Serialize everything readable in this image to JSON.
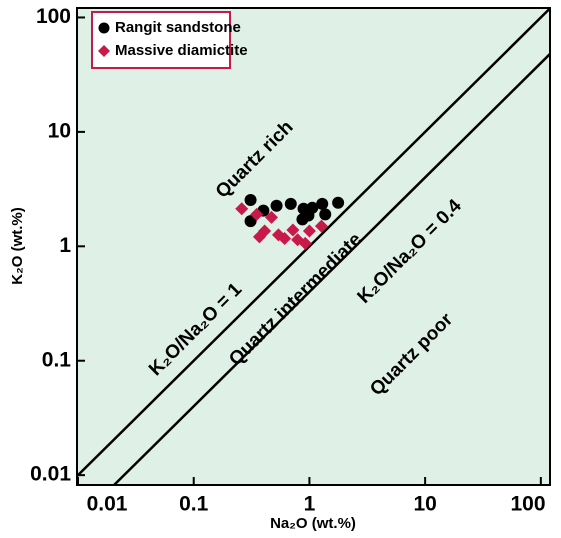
{
  "chart_data": {
    "type": "scatter",
    "log_x": true,
    "log_y": true,
    "x_label": "Na₂O (wt.%)",
    "y_label": "K₂O (wt.%)",
    "xlim": [
      0.0098,
      120
    ],
    "ylim": [
      0.0082,
      121
    ],
    "xticks": [
      0.01,
      0.1,
      1,
      10,
      100
    ],
    "yticks": [
      0.01,
      0.1,
      1,
      10,
      100
    ],
    "background": "#dff0e6",
    "legend": "upper left",
    "legend_border": "#c8194b",
    "regions": [
      "Quartz rich",
      "Quartz intermediate",
      "Quartz poor"
    ],
    "ratio_lines": [
      {
        "label": "K₂O/Na₂O = 1",
        "ratio": 1
      },
      {
        "label": "K₂O/Na₂O = 0.4",
        "ratio": 0.4
      }
    ],
    "series": [
      {
        "name": "Rangit sandstone",
        "color": "#000000",
        "marker": "circle",
        "x": [
          0.31,
          0.31,
          0.4,
          0.52,
          0.69,
          0.87,
          0.89,
          1.06,
          1.29,
          1.37,
          1.77,
          0.98
        ],
        "y": [
          2.54,
          1.66,
          2.05,
          2.26,
          2.35,
          1.72,
          2.13,
          2.17,
          2.35,
          1.9,
          2.4,
          1.86
        ]
      },
      {
        "name": "Massive diamictite",
        "color": "#c8194b",
        "marker": "diamond",
        "x": [
          0.26,
          0.35,
          0.41,
          0.37,
          0.47,
          0.54,
          0.61,
          0.72,
          0.79,
          0.92,
          1.0,
          1.27
        ],
        "y": [
          2.13,
          1.9,
          1.36,
          1.21,
          1.79,
          1.26,
          1.17,
          1.39,
          1.14,
          1.06,
          1.36,
          1.5
        ]
      }
    ]
  }
}
